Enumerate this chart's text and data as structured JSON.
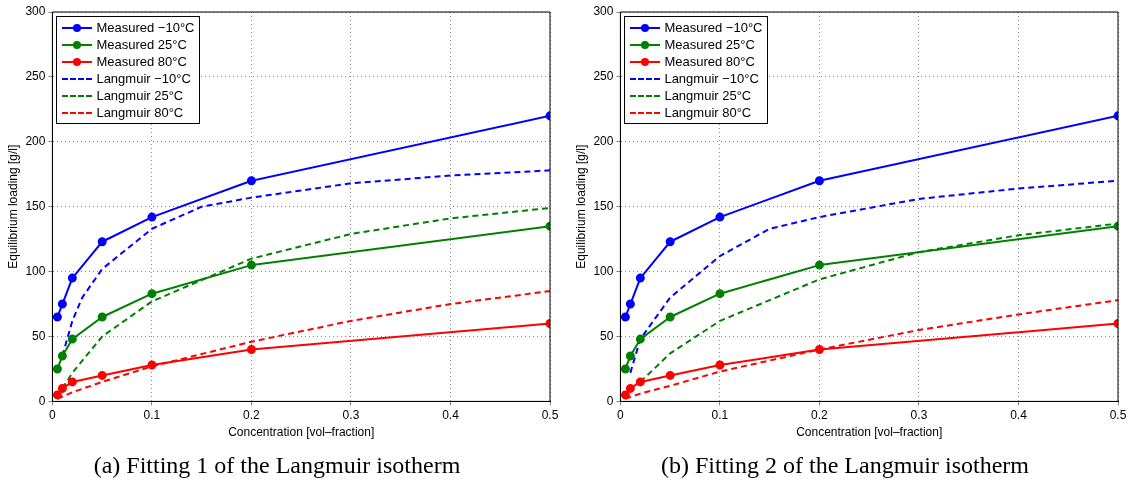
{
  "chart_data": [
    {
      "type": "line",
      "title": "(a) Fitting 1 of the Langmuir isotherm",
      "xlabel": "Concentration [vol–fraction]",
      "ylabel": "Equilibrium loading [g/l]",
      "xlim": [
        0,
        0.5
      ],
      "xticks": [
        0,
        0.1,
        0.2,
        0.3,
        0.4,
        0.5
      ],
      "ylim": [
        0,
        300
      ],
      "yticks": [
        0,
        50,
        100,
        150,
        200,
        250,
        300
      ],
      "grid": true,
      "legend": "top left",
      "series": [
        {
          "name": "Measured −10°C",
          "color": "#0000ff",
          "marker": "circle",
          "line_style": "solid",
          "x": [
            0.005,
            0.01,
            0.02,
            0.05,
            0.1,
            0.2,
            0.5
          ],
          "values": [
            65,
            75,
            95,
            123,
            142,
            170,
            220
          ]
        },
        {
          "name": "Measured 25°C",
          "color": "#008000",
          "marker": "circle",
          "line_style": "solid",
          "x": [
            0.005,
            0.01,
            0.02,
            0.05,
            0.1,
            0.2,
            0.5
          ],
          "values": [
            25,
            35,
            48,
            65,
            83,
            105,
            135
          ]
        },
        {
          "name": "Measured 80°C",
          "color": "#ff0000",
          "marker": "circle",
          "line_style": "solid",
          "x": [
            0.005,
            0.01,
            0.02,
            0.05,
            0.1,
            0.2,
            0.5
          ],
          "values": [
            5,
            10,
            15,
            20,
            28,
            40,
            60
          ]
        },
        {
          "name": "Langmuir −10°C",
          "color": "#0000ff",
          "marker": "none",
          "line_style": "dashed",
          "x": [
            0.01,
            0.02,
            0.03,
            0.05,
            0.1,
            0.15,
            0.2,
            0.3,
            0.4,
            0.5
          ],
          "values": [
            35,
            62,
            80,
            102,
            133,
            150,
            157,
            168,
            174,
            178
          ]
        },
        {
          "name": "Langmuir 25°C",
          "color": "#008000",
          "marker": "none",
          "line_style": "dashed",
          "x": [
            0.01,
            0.02,
            0.05,
            0.1,
            0.2,
            0.3,
            0.4,
            0.5
          ],
          "values": [
            10,
            22,
            50,
            77,
            110,
            129,
            141,
            149
          ]
        },
        {
          "name": "Langmuir 80°C",
          "color": "#ff0000",
          "marker": "none",
          "line_style": "dashed",
          "x": [
            0.005,
            0.02,
            0.05,
            0.1,
            0.2,
            0.3,
            0.4,
            0.5
          ],
          "values": [
            2,
            7,
            15,
            27,
            46,
            62,
            75,
            85
          ]
        }
      ]
    },
    {
      "type": "line",
      "title": "(b) Fitting 2 of the Langmuir isotherm",
      "xlabel": "Concentration [vol–fraction]",
      "ylabel": "Equilibrium loading [g/l]",
      "xlim": [
        0,
        0.5
      ],
      "xticks": [
        0,
        0.1,
        0.2,
        0.3,
        0.4,
        0.5
      ],
      "ylim": [
        0,
        300
      ],
      "yticks": [
        0,
        50,
        100,
        150,
        200,
        250,
        300
      ],
      "grid": true,
      "legend": "top left",
      "series": [
        {
          "name": "Measured −10°C",
          "color": "#0000ff",
          "marker": "circle",
          "line_style": "solid",
          "x": [
            0.005,
            0.01,
            0.02,
            0.05,
            0.1,
            0.2,
            0.5
          ],
          "values": [
            65,
            75,
            95,
            123,
            142,
            170,
            220
          ]
        },
        {
          "name": "Measured 25°C",
          "color": "#008000",
          "marker": "circle",
          "line_style": "solid",
          "x": [
            0.005,
            0.01,
            0.02,
            0.05,
            0.1,
            0.2,
            0.5
          ],
          "values": [
            25,
            35,
            48,
            65,
            83,
            105,
            135
          ]
        },
        {
          "name": "Measured 80°C",
          "color": "#ff0000",
          "marker": "circle",
          "line_style": "solid",
          "x": [
            0.005,
            0.01,
            0.02,
            0.05,
            0.1,
            0.2,
            0.5
          ],
          "values": [
            5,
            10,
            15,
            20,
            28,
            40,
            60
          ]
        },
        {
          "name": "Langmuir −10°C",
          "color": "#0000ff",
          "marker": "none",
          "line_style": "dashed",
          "x": [
            0.01,
            0.02,
            0.05,
            0.1,
            0.15,
            0.2,
            0.3,
            0.4,
            0.5
          ],
          "values": [
            22,
            48,
            80,
            112,
            133,
            142,
            156,
            164,
            170
          ]
        },
        {
          "name": "Langmuir 25°C",
          "color": "#008000",
          "marker": "none",
          "line_style": "dashed",
          "x": [
            0.02,
            0.05,
            0.1,
            0.2,
            0.3,
            0.4,
            0.5
          ],
          "values": [
            15,
            37,
            62,
            94,
            115,
            128,
            137
          ]
        },
        {
          "name": "Langmuir 80°C",
          "color": "#ff0000",
          "marker": "none",
          "line_style": "dashed",
          "x": [
            0.005,
            0.02,
            0.05,
            0.1,
            0.2,
            0.3,
            0.4,
            0.5
          ],
          "values": [
            2,
            6,
            12,
            23,
            40,
            55,
            67,
            78
          ]
        }
      ]
    }
  ]
}
